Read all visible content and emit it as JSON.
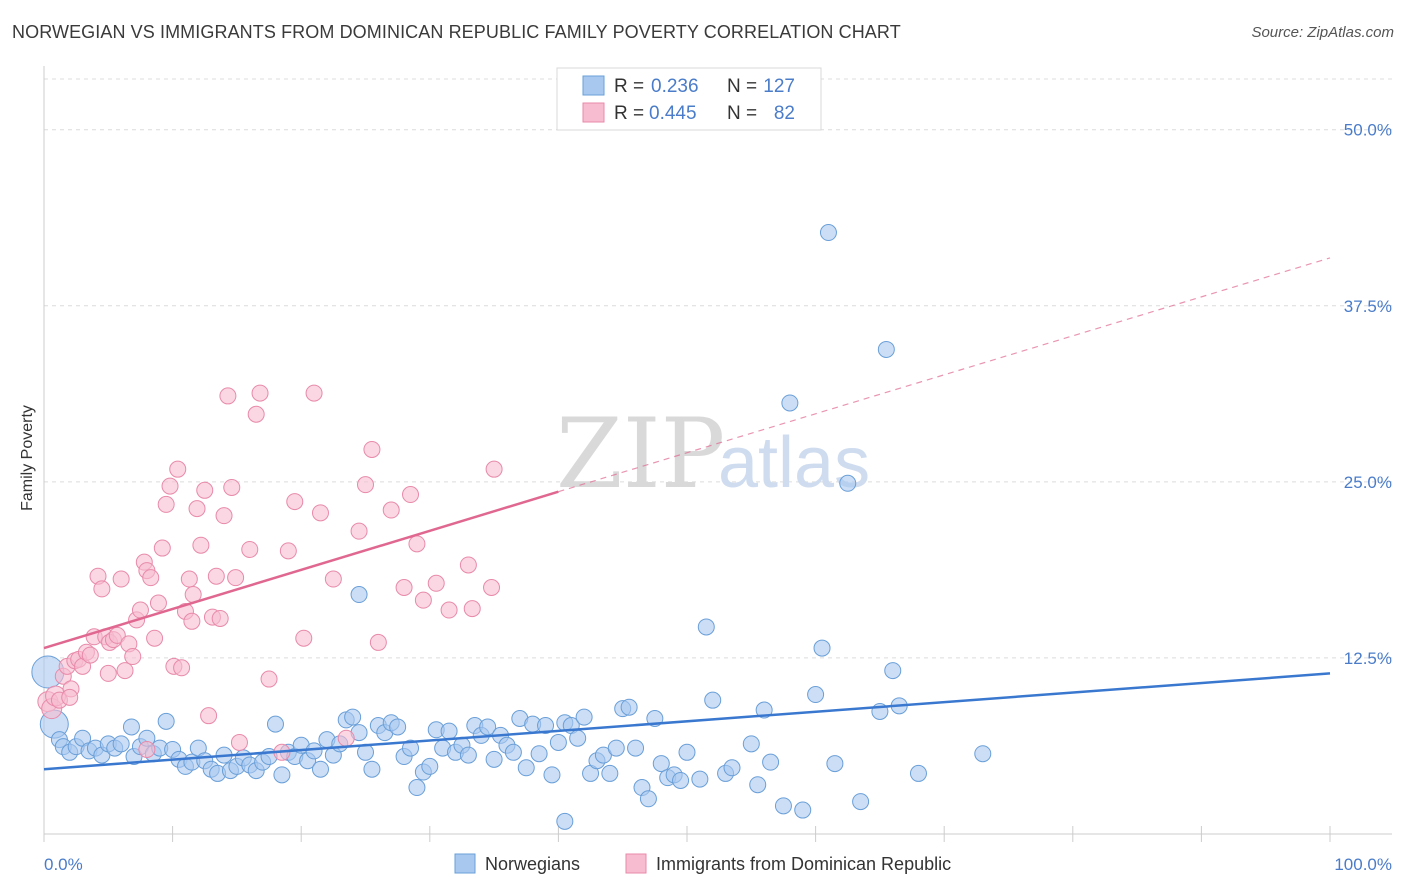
{
  "title": "NORWEGIAN VS IMMIGRANTS FROM DOMINICAN REPUBLIC FAMILY POVERTY CORRELATION CHART",
  "source": "Source: ZipAtlas.com",
  "watermark": {
    "zip": "ZIP",
    "atlas": "atlas"
  },
  "colors": {
    "blue": "#a8c8f0",
    "blue_stroke": "#6a9fd8",
    "blue_line": "#3a78d0",
    "pink": "#f7bcd0",
    "pink_stroke": "#e88aaa",
    "pink_line": "#e06890",
    "tick_text": "#4a7cc9"
  },
  "legend": {
    "rows": [
      {
        "r_label": "R =",
        "r_value": "0.236",
        "n_label": "N =",
        "n_value": "127"
      },
      {
        "r_label": "R =",
        "r_value": "0.445",
        "n_label": "N =",
        "n_value": "82"
      }
    ]
  },
  "bottom_legend": [
    "Norwegians",
    "Immigrants from Dominican Republic"
  ],
  "chart_data": {
    "type": "scatter",
    "title": "NORWEGIAN VS IMMIGRANTS FROM DOMINICAN REPUBLIC FAMILY POVERTY CORRELATION CHART",
    "xlabel": "",
    "ylabel": "Family Poverty",
    "xlim": [
      0,
      100
    ],
    "ylim": [
      0,
      50
    ],
    "y_ticks": [
      "12.5%",
      "25.0%",
      "37.5%",
      "50.0%"
    ],
    "y_tick_values": [
      12.5,
      25.0,
      37.5,
      50.0
    ],
    "x_tick_labels": [
      "0.0%",
      "100.0%"
    ],
    "grid": true,
    "legend_position": "top-center",
    "series": [
      {
        "name": "Norwegians",
        "r": 0.236,
        "n": 127,
        "trend": {
          "x": [
            0,
            100
          ],
          "y": [
            4.6,
            11.4
          ]
        },
        "points": [
          [
            0.3,
            11.5
          ],
          [
            0.8,
            7.8
          ],
          [
            1.2,
            6.7
          ],
          [
            1.5,
            6.2
          ],
          [
            2.0,
            5.8
          ],
          [
            2.5,
            6.2
          ],
          [
            3.0,
            6.8
          ],
          [
            3.5,
            5.9
          ],
          [
            4.0,
            6.1
          ],
          [
            4.5,
            5.6
          ],
          [
            5.0,
            6.4
          ],
          [
            5.5,
            6.1
          ],
          [
            6.0,
            6.4
          ],
          [
            6.8,
            7.6
          ],
          [
            7.0,
            5.5
          ],
          [
            7.5,
            6.2
          ],
          [
            8.0,
            6.8
          ],
          [
            8.5,
            5.7
          ],
          [
            9.0,
            6.1
          ],
          [
            9.5,
            8.0
          ],
          [
            10.0,
            6.0
          ],
          [
            10.5,
            5.3
          ],
          [
            11.0,
            4.8
          ],
          [
            11.5,
            5.1
          ],
          [
            12.0,
            6.1
          ],
          [
            12.5,
            5.2
          ],
          [
            13.0,
            4.6
          ],
          [
            13.5,
            4.3
          ],
          [
            14.0,
            5.6
          ],
          [
            14.5,
            4.5
          ],
          [
            15.0,
            4.8
          ],
          [
            15.5,
            5.4
          ],
          [
            16.0,
            4.9
          ],
          [
            16.5,
            4.5
          ],
          [
            17.0,
            5.1
          ],
          [
            17.5,
            5.5
          ],
          [
            18.0,
            7.8
          ],
          [
            18.5,
            4.2
          ],
          [
            19.0,
            5.8
          ],
          [
            19.5,
            5.5
          ],
          [
            20.0,
            6.3
          ],
          [
            20.5,
            5.2
          ],
          [
            21.0,
            5.9
          ],
          [
            21.5,
            4.6
          ],
          [
            22.0,
            6.7
          ],
          [
            22.5,
            5.6
          ],
          [
            23.0,
            6.4
          ],
          [
            23.5,
            8.1
          ],
          [
            24.0,
            8.3
          ],
          [
            24.5,
            7.2
          ],
          [
            25.0,
            5.8
          ],
          [
            25.5,
            4.6
          ],
          [
            26.0,
            7.7
          ],
          [
            26.5,
            7.2
          ],
          [
            27.0,
            7.9
          ],
          [
            27.5,
            7.6
          ],
          [
            28.0,
            5.5
          ],
          [
            28.5,
            6.1
          ],
          [
            29.0,
            3.3
          ],
          [
            29.5,
            4.4
          ],
          [
            30.0,
            4.8
          ],
          [
            30.5,
            7.4
          ],
          [
            31.0,
            6.1
          ],
          [
            31.5,
            7.3
          ],
          [
            32.0,
            5.8
          ],
          [
            32.5,
            6.3
          ],
          [
            33.0,
            5.6
          ],
          [
            33.5,
            7.7
          ],
          [
            34.0,
            7.0
          ],
          [
            34.5,
            7.6
          ],
          [
            35.0,
            5.3
          ],
          [
            35.5,
            7.0
          ],
          [
            36.0,
            6.3
          ],
          [
            36.5,
            5.8
          ],
          [
            37.0,
            8.2
          ],
          [
            37.5,
            4.7
          ],
          [
            38.0,
            7.8
          ],
          [
            38.5,
            5.7
          ],
          [
            39.0,
            7.7
          ],
          [
            39.5,
            4.2
          ],
          [
            40.0,
            6.5
          ],
          [
            40.5,
            7.9
          ],
          [
            41.0,
            7.7
          ],
          [
            41.5,
            6.8
          ],
          [
            42.0,
            8.3
          ],
          [
            42.5,
            4.3
          ],
          [
            43.0,
            5.2
          ],
          [
            43.5,
            5.6
          ],
          [
            44.0,
            4.3
          ],
          [
            44.5,
            6.1
          ],
          [
            45.0,
            8.9
          ],
          [
            45.5,
            9.0
          ],
          [
            46.0,
            6.1
          ],
          [
            46.5,
            3.3
          ],
          [
            47.0,
            2.5
          ],
          [
            47.5,
            8.2
          ],
          [
            48.0,
            5.0
          ],
          [
            48.5,
            4.0
          ],
          [
            49.0,
            4.2
          ],
          [
            49.5,
            3.8
          ],
          [
            50.0,
            5.8
          ],
          [
            51.0,
            3.9
          ],
          [
            52.0,
            9.5
          ],
          [
            53.0,
            4.3
          ],
          [
            53.5,
            4.7
          ],
          [
            55.0,
            6.4
          ],
          [
            55.5,
            3.5
          ],
          [
            56.0,
            8.8
          ],
          [
            56.5,
            5.1
          ],
          [
            58.0,
            30.6
          ],
          [
            57.5,
            2.0
          ],
          [
            59.0,
            1.7
          ],
          [
            60.0,
            9.9
          ],
          [
            60.5,
            13.2
          ],
          [
            61.0,
            42.7
          ],
          [
            61.5,
            5.0
          ],
          [
            62.5,
            24.9
          ],
          [
            63.5,
            2.3
          ],
          [
            65.0,
            8.7
          ],
          [
            65.5,
            34.4
          ],
          [
            66.0,
            11.6
          ],
          [
            66.5,
            9.1
          ],
          [
            68.0,
            4.3
          ],
          [
            73.0,
            5.7
          ],
          [
            40.5,
            0.9
          ],
          [
            51.5,
            14.7
          ],
          [
            24.5,
            17.0
          ]
        ]
      },
      {
        "name": "Immigrants from Dominican Republic",
        "r": 0.445,
        "n": 82,
        "trend": {
          "x": [
            0,
            40
          ],
          "y": [
            13.2,
            24.3
          ]
        },
        "trend_extension": {
          "x": [
            40,
            100
          ],
          "y": [
            24.3,
            40.9
          ]
        },
        "points": [
          [
            0.3,
            9.4
          ],
          [
            0.6,
            8.9
          ],
          [
            0.9,
            9.8
          ],
          [
            1.2,
            9.5
          ],
          [
            1.5,
            11.2
          ],
          [
            1.8,
            11.9
          ],
          [
            2.1,
            10.3
          ],
          [
            2.4,
            12.3
          ],
          [
            2.7,
            12.4
          ],
          [
            3.0,
            11.9
          ],
          [
            3.3,
            12.9
          ],
          [
            3.6,
            12.7
          ],
          [
            3.9,
            14.0
          ],
          [
            4.2,
            18.3
          ],
          [
            4.5,
            17.4
          ],
          [
            4.8,
            14.0
          ],
          [
            5.1,
            13.6
          ],
          [
            5.4,
            13.8
          ],
          [
            5.7,
            14.1
          ],
          [
            6.0,
            18.1
          ],
          [
            6.3,
            11.6
          ],
          [
            6.6,
            13.5
          ],
          [
            6.9,
            12.6
          ],
          [
            7.2,
            15.2
          ],
          [
            7.5,
            15.9
          ],
          [
            7.8,
            19.3
          ],
          [
            8.0,
            18.7
          ],
          [
            8.3,
            18.2
          ],
          [
            8.6,
            13.9
          ],
          [
            8.9,
            16.4
          ],
          [
            9.2,
            20.3
          ],
          [
            9.5,
            23.4
          ],
          [
            9.8,
            24.7
          ],
          [
            10.1,
            11.9
          ],
          [
            10.4,
            25.9
          ],
          [
            10.7,
            11.8
          ],
          [
            11.0,
            15.8
          ],
          [
            11.3,
            18.1
          ],
          [
            11.6,
            17.0
          ],
          [
            11.9,
            23.1
          ],
          [
            12.2,
            20.5
          ],
          [
            12.5,
            24.4
          ],
          [
            12.8,
            8.4
          ],
          [
            13.1,
            15.4
          ],
          [
            13.4,
            18.3
          ],
          [
            13.7,
            15.3
          ],
          [
            14.0,
            22.6
          ],
          [
            14.3,
            31.1
          ],
          [
            14.6,
            24.6
          ],
          [
            14.9,
            18.2
          ],
          [
            15.2,
            6.5
          ],
          [
            16.0,
            20.2
          ],
          [
            16.5,
            29.8
          ],
          [
            16.8,
            31.3
          ],
          [
            17.5,
            11.0
          ],
          [
            18.5,
            5.8
          ],
          [
            19.0,
            20.1
          ],
          [
            19.5,
            23.6
          ],
          [
            20.2,
            13.9
          ],
          [
            21.0,
            31.3
          ],
          [
            21.5,
            22.8
          ],
          [
            22.5,
            18.1
          ],
          [
            23.5,
            6.8
          ],
          [
            24.5,
            21.5
          ],
          [
            25.0,
            24.8
          ],
          [
            25.5,
            27.3
          ],
          [
            26.0,
            13.6
          ],
          [
            27.0,
            23.0
          ],
          [
            28.0,
            17.5
          ],
          [
            28.5,
            24.1
          ],
          [
            29.0,
            20.6
          ],
          [
            29.5,
            16.6
          ],
          [
            30.5,
            17.8
          ],
          [
            31.5,
            15.9
          ],
          [
            33.0,
            19.1
          ],
          [
            33.3,
            16.0
          ],
          [
            34.8,
            17.5
          ],
          [
            35.0,
            25.9
          ],
          [
            11.5,
            15.1
          ],
          [
            5.0,
            11.4
          ],
          [
            2.0,
            9.7
          ],
          [
            8.0,
            6.0
          ]
        ]
      }
    ]
  }
}
